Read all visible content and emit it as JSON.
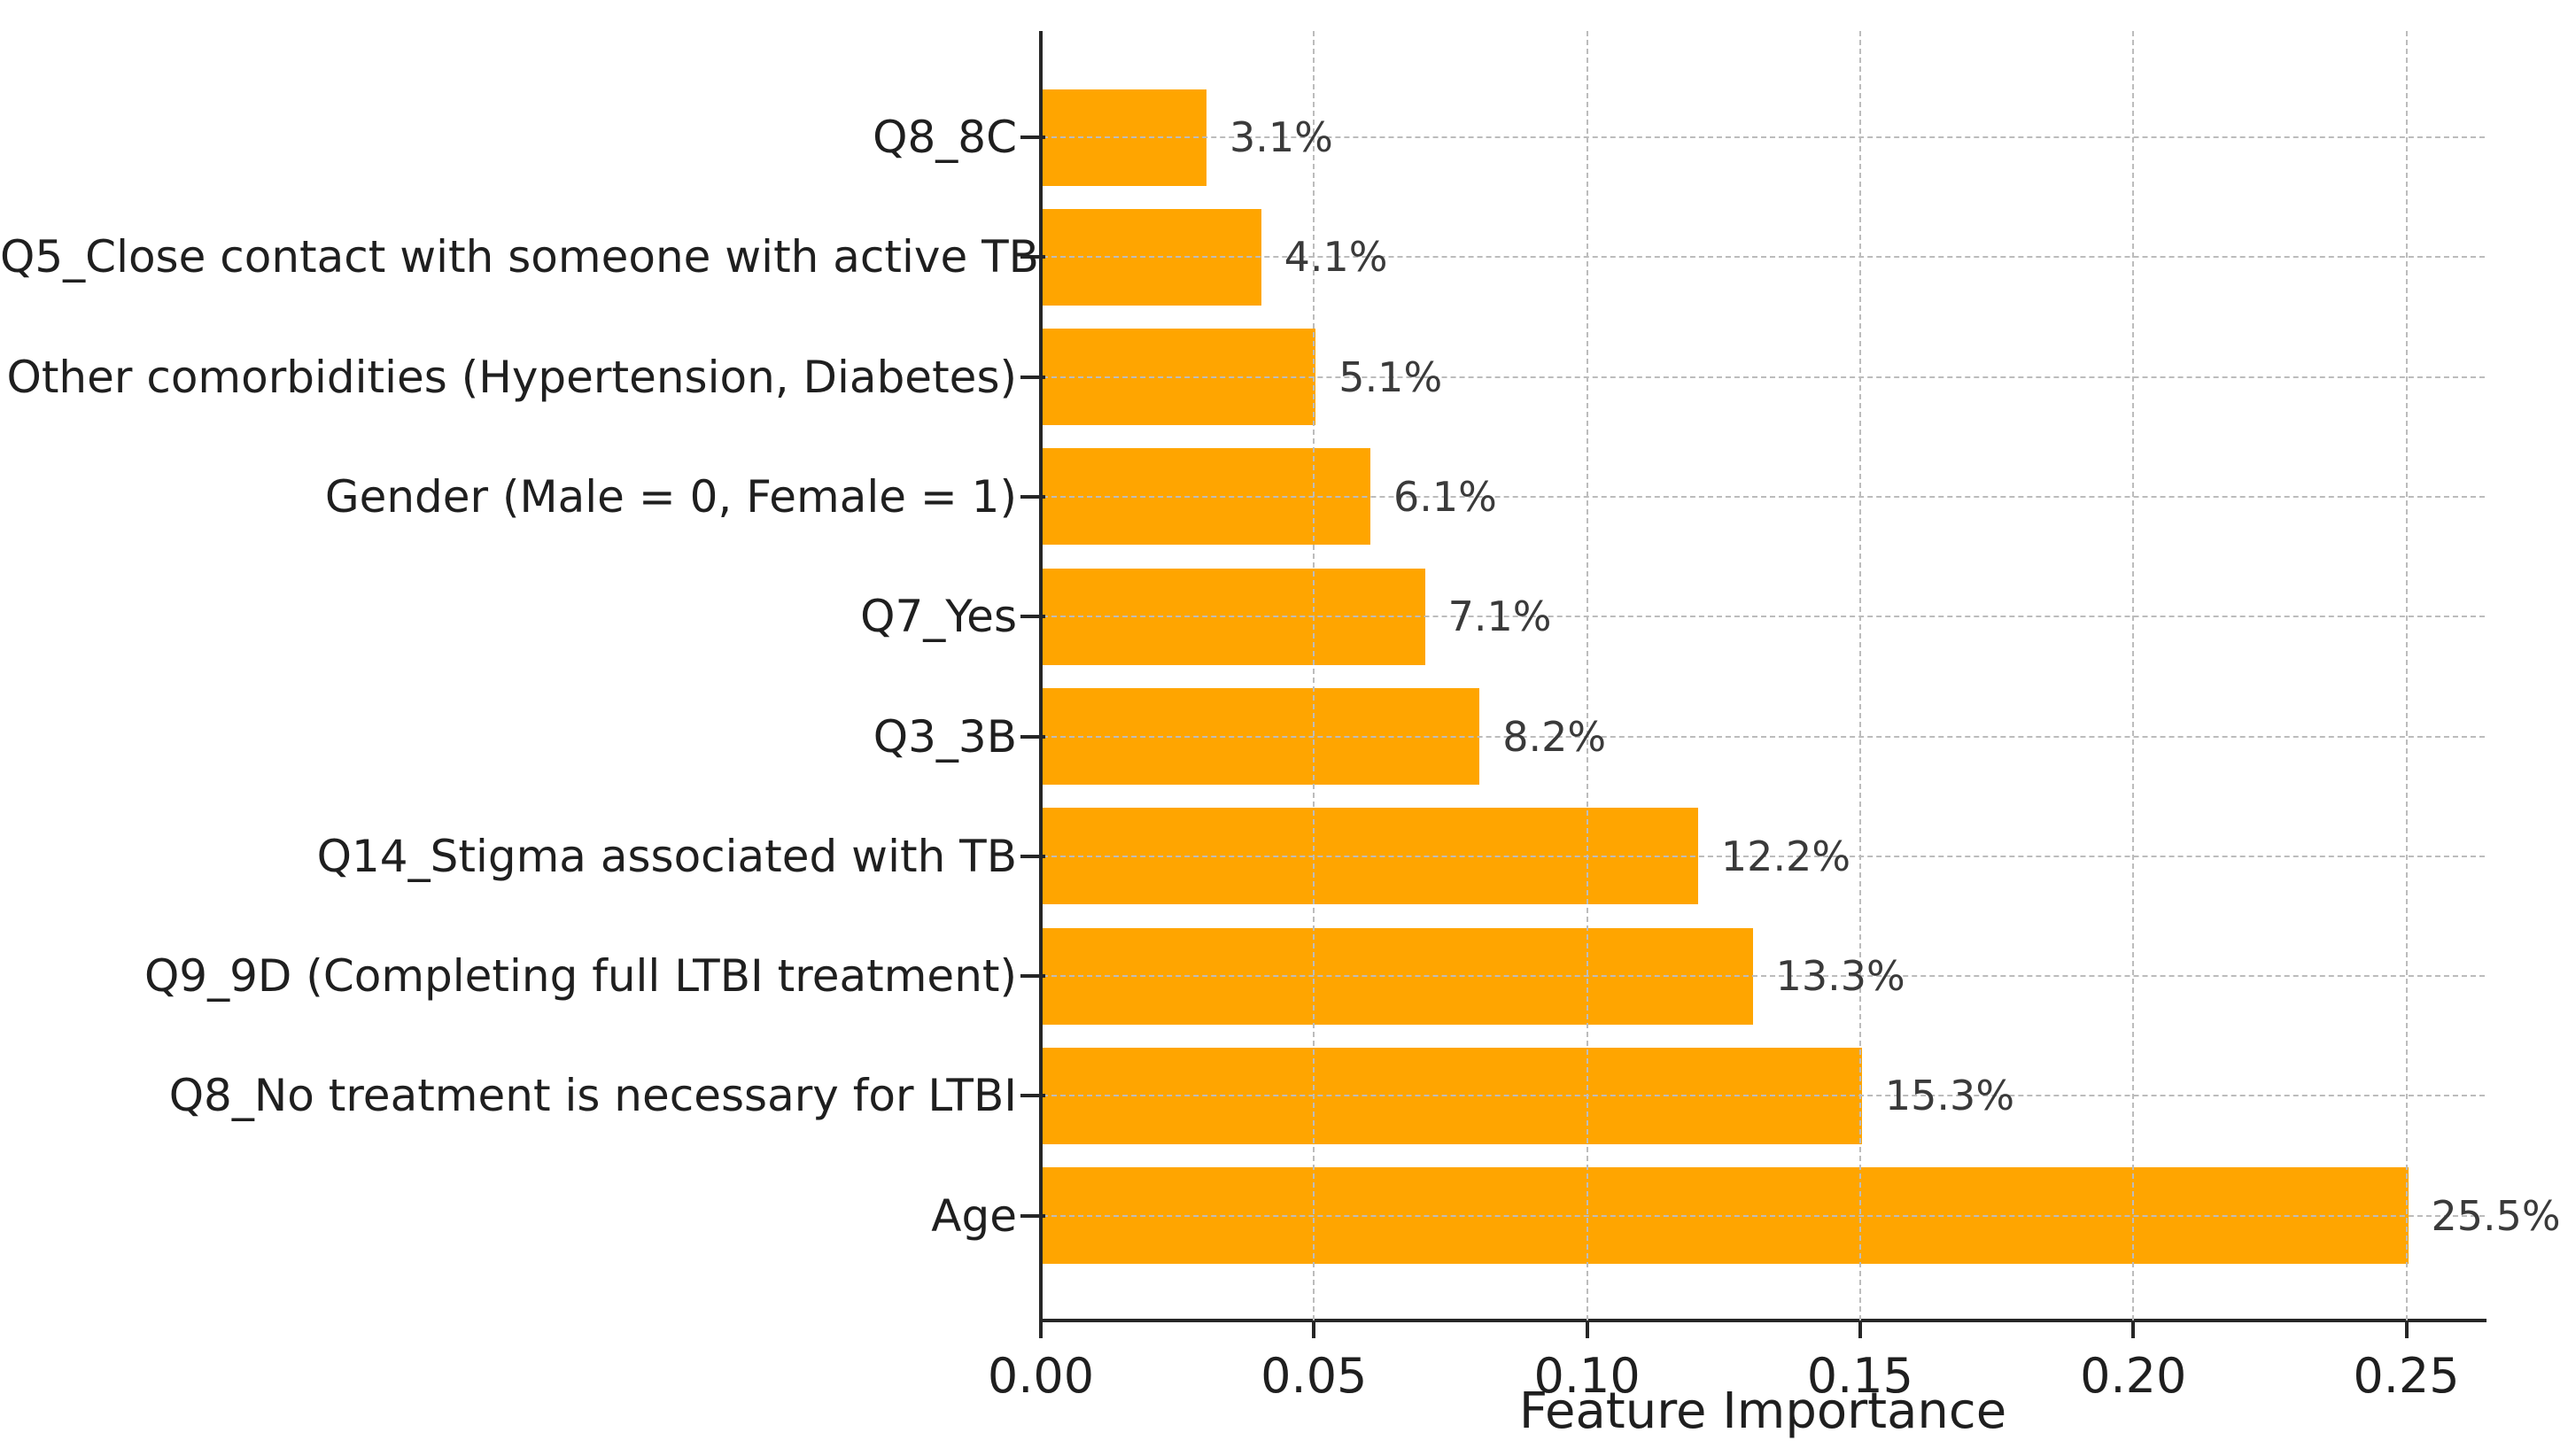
{
  "figure": {
    "background": "#ffffff",
    "bar_color": "#FFA500",
    "grid_color": "#bcbcbc",
    "axis_color": "#262626",
    "label_color": "#1f1f1f",
    "value_label_color": "#3a3a3a"
  },
  "chart_data": {
    "type": "bar",
    "orientation": "horizontal",
    "title": "",
    "xlabel": "Feature Importance",
    "ylabel": "",
    "xlim": [
      0,
      0.2644
    ],
    "grid": "dashed gridlines on both axes, drawn over bars",
    "legend": "none",
    "categories": [
      "Q8_8C",
      "Q5_Close contact with someone with active TB",
      "Other comorbidities (Hypertension, Diabetes)",
      "Gender (Male = 0, Female = 1)",
      "Q7_Yes",
      "Q3_3B",
      "Q14_Stigma associated with TB",
      "Q9_9D (Completing full LTBI treatment)",
      "Q8_No treatment is necessary for LTBI",
      "Age"
    ],
    "values": [
      0.03,
      0.04,
      0.05,
      0.06,
      0.07,
      0.08,
      0.12,
      0.13,
      0.15,
      0.25
    ],
    "value_labels": [
      "3.1%",
      "4.1%",
      "5.1%",
      "6.1%",
      "7.1%",
      "8.2%",
      "12.2%",
      "13.3%",
      "15.3%",
      "25.5%"
    ],
    "xticks": [
      0,
      0.05,
      0.1,
      0.15,
      0.2,
      0.25
    ],
    "xtick_labels": [
      "0.00",
      "0.05",
      "0.10",
      "0.15",
      "0.20",
      "0.25"
    ]
  }
}
